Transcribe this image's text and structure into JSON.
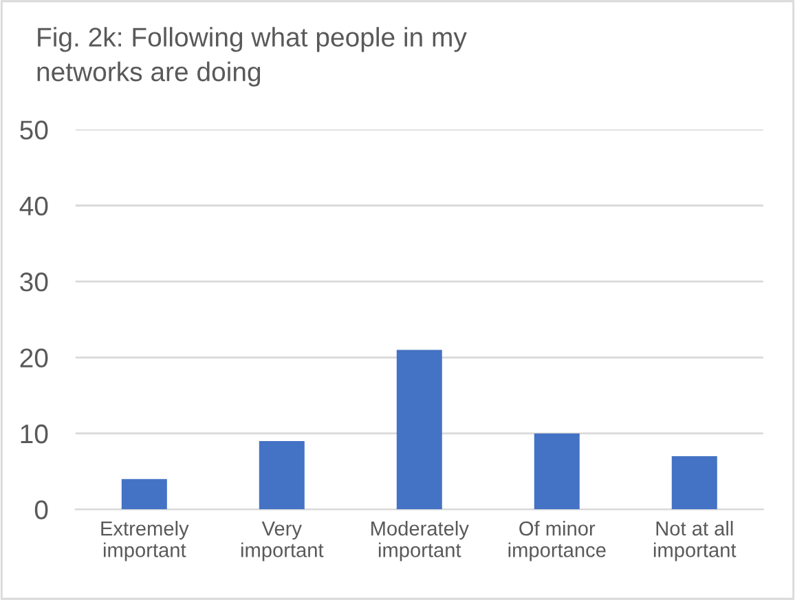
{
  "chart_data": {
    "type": "bar",
    "title": "Fig. 2k: Following what people in my\nnetworks are doing",
    "categories": [
      "Extremely\nimportant",
      "Very\nimportant",
      "Moderately\nimportant",
      "Of minor\nimportance",
      "Not at all\nimportant"
    ],
    "values": [
      4,
      9,
      21,
      10,
      7
    ],
    "color": "#4472c4",
    "ylim": [
      0,
      50
    ],
    "yticks": [
      0,
      10,
      20,
      30,
      40,
      50
    ],
    "grid": "y",
    "legend": false
  }
}
